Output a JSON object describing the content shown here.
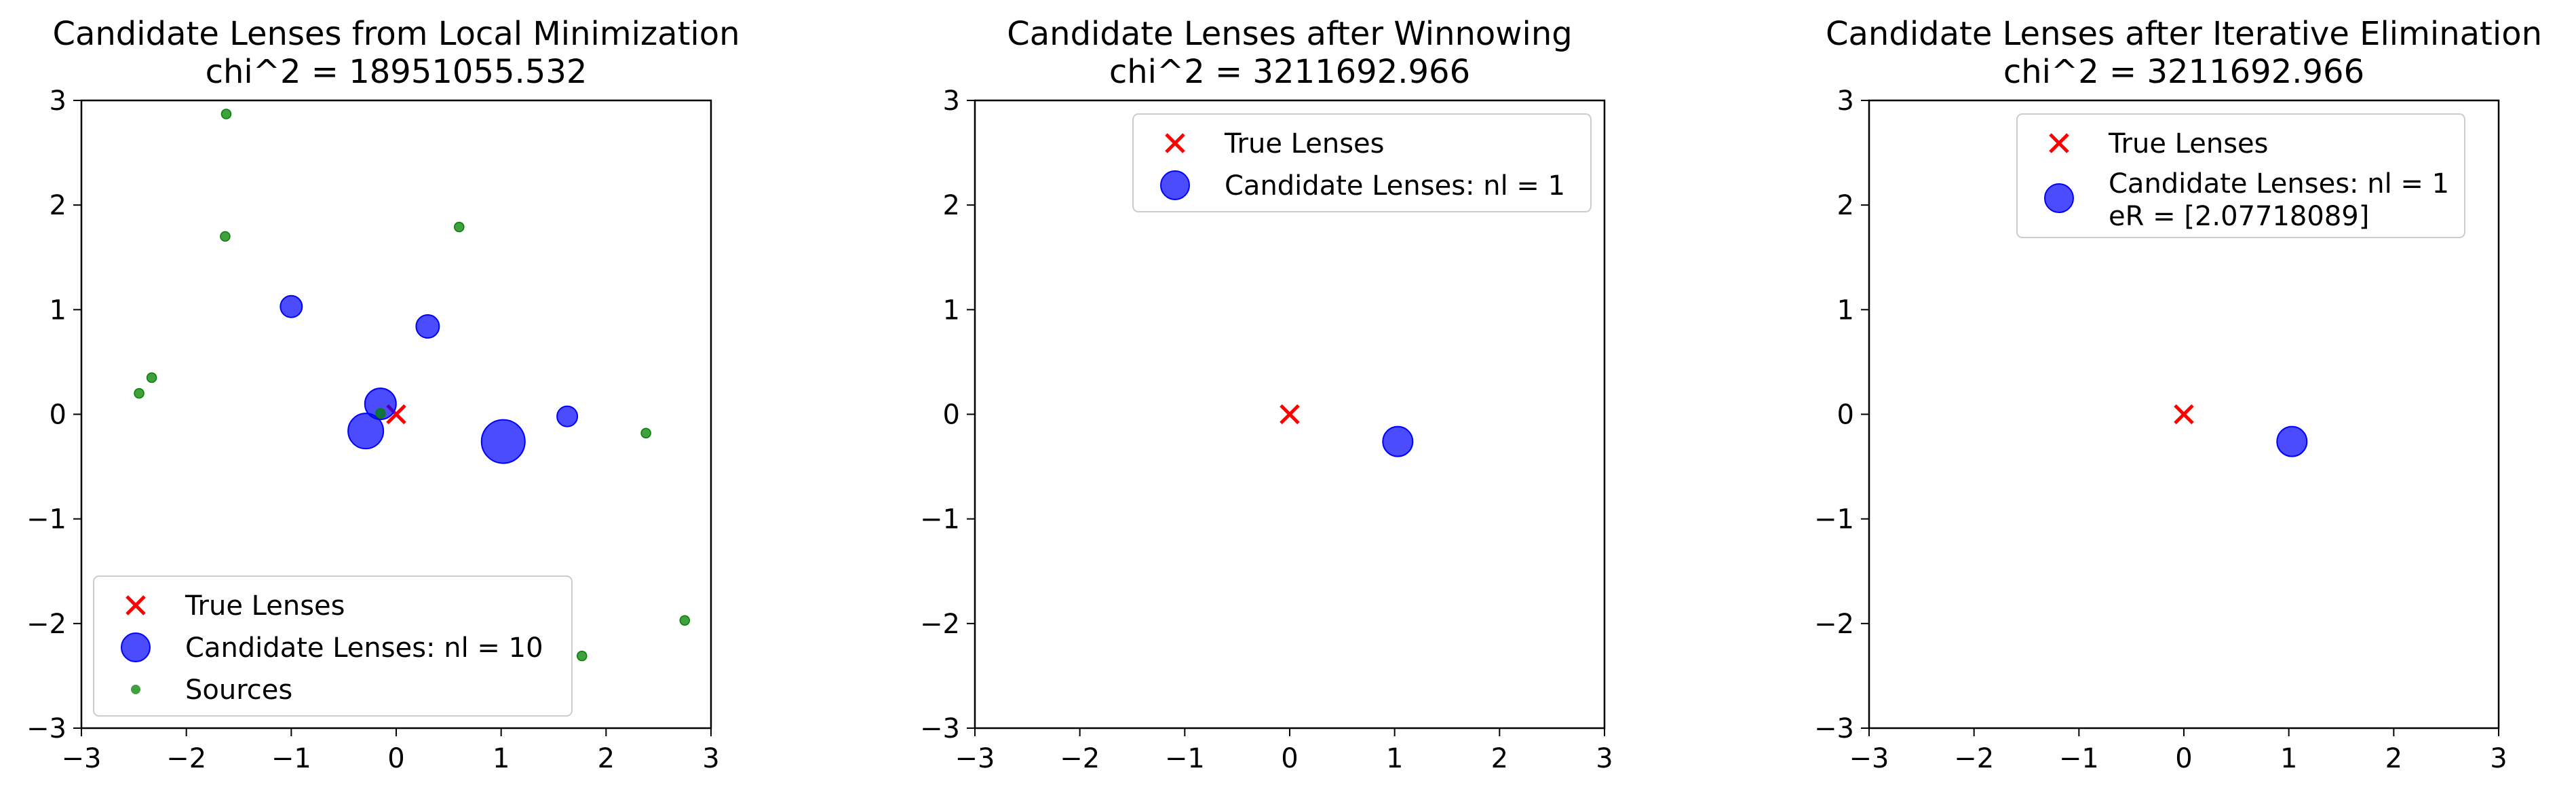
{
  "chart_data": [
    {
      "type": "scatter",
      "title": "Candidate Lenses from Local Minimization",
      "subtitle": "chi^2 = 18951055.532",
      "xlim": [
        -3,
        3
      ],
      "ylim": [
        -3,
        3
      ],
      "xticks": [
        "−3",
        "−2",
        "−1",
        "0",
        "1",
        "2",
        "3"
      ],
      "yticks": [
        "−3",
        "−2",
        "−1",
        "0",
        "1",
        "2",
        "3"
      ],
      "grid": false,
      "legend_position": "lower-left",
      "series": [
        {
          "name": "True Lenses",
          "marker": "x",
          "color": "#ff0000",
          "points": [
            {
              "x": 0.0,
              "y": 0.0
            }
          ]
        },
        {
          "name": "Candidate Lenses: nl = 10",
          "marker": "circle",
          "color": "#0000ff",
          "points": [
            {
              "x": 1.02,
              "y": -0.26,
              "size": 1.0
            },
            {
              "x": -0.29,
              "y": -0.16,
              "size": 0.7
            },
            {
              "x": -0.15,
              "y": 0.1,
              "size": 0.55
            },
            {
              "x": 0.3,
              "y": 0.84,
              "size": 0.25
            },
            {
              "x": -1.0,
              "y": 1.03,
              "size": 0.2
            },
            {
              "x": 1.63,
              "y": -0.02,
              "size": 0.15
            }
          ]
        },
        {
          "name": "Sources",
          "marker": "dot",
          "color": "#008000",
          "points": [
            {
              "x": -1.62,
              "y": 2.87
            },
            {
              "x": -1.63,
              "y": 1.7
            },
            {
              "x": 0.6,
              "y": 1.79
            },
            {
              "x": -2.33,
              "y": 0.35
            },
            {
              "x": -2.45,
              "y": 0.2
            },
            {
              "x": -0.15,
              "y": 0.01
            },
            {
              "x": 2.38,
              "y": -0.18
            },
            {
              "x": 2.75,
              "y": -1.97
            },
            {
              "x": 1.77,
              "y": -2.31
            }
          ]
        }
      ]
    },
    {
      "type": "scatter",
      "title": "Candidate Lenses after Winnowing",
      "subtitle": "chi^2 = 3211692.966",
      "xlim": [
        -3,
        3
      ],
      "ylim": [
        -3,
        3
      ],
      "xticks": [
        "−3",
        "−2",
        "−1",
        "0",
        "1",
        "2",
        "3"
      ],
      "yticks": [
        "−3",
        "−2",
        "−1",
        "0",
        "1",
        "2",
        "3"
      ],
      "grid": false,
      "legend_position": "upper-right",
      "series": [
        {
          "name": "True Lenses",
          "marker": "x",
          "color": "#ff0000",
          "points": [
            {
              "x": 0.0,
              "y": 0.0
            }
          ]
        },
        {
          "name": "Candidate Lenses: nl = 1",
          "marker": "circle",
          "color": "#0000ff",
          "points": [
            {
              "x": 1.03,
              "y": -0.26,
              "size": 0.5
            }
          ]
        }
      ]
    },
    {
      "type": "scatter",
      "title": "Candidate Lenses after Iterative Elimination",
      "subtitle": "chi^2 = 3211692.966",
      "xlim": [
        -3,
        3
      ],
      "ylim": [
        -3,
        3
      ],
      "xticks": [
        "−3",
        "−2",
        "−1",
        "0",
        "1",
        "2",
        "3"
      ],
      "yticks": [
        "−3",
        "−2",
        "−1",
        "0",
        "1",
        "2",
        "3"
      ],
      "grid": false,
      "legend_position": "upper-right",
      "series": [
        {
          "name": "True Lenses",
          "marker": "x",
          "color": "#ff0000",
          "points": [
            {
              "x": 0.0,
              "y": 0.0
            }
          ]
        },
        {
          "name": "Candidate Lenses: nl = 1",
          "name_line2": " eR = [2.07718089]",
          "marker": "circle",
          "color": "#0000ff",
          "points": [
            {
              "x": 1.03,
              "y": -0.26,
              "size": 0.5
            }
          ]
        }
      ]
    }
  ]
}
